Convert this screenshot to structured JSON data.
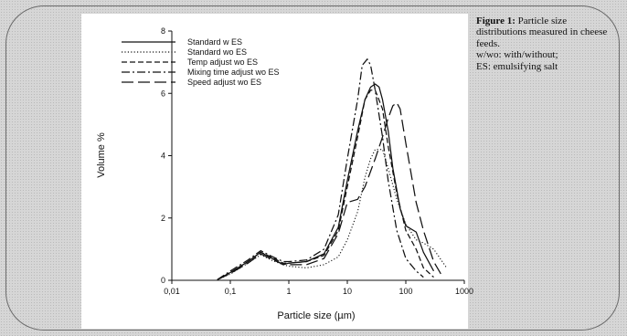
{
  "caption": {
    "figure_label": "Figure 1:",
    "title_text": "Particle size distributions measured in cheese feeds.",
    "note_line1": "w/wo: with/without;",
    "note_line2": "ES: emulsifying salt"
  },
  "chart_data": {
    "type": "line",
    "xlabel": "Particle size (µm)",
    "ylabel": "Volume %",
    "xscale": "log",
    "xlim": [
      0.01,
      1000
    ],
    "ylim": [
      0,
      8
    ],
    "xticks": [
      "0,01",
      "0,1",
      "1",
      "10",
      "100",
      "1000"
    ],
    "yticks": [
      "0",
      "2",
      "4",
      "6",
      "8"
    ],
    "legend_position": "top-left",
    "grid": false,
    "series": [
      {
        "name": "Standard w ES",
        "style": "solid",
        "points": [
          [
            0.06,
            0.02
          ],
          [
            0.1,
            0.25
          ],
          [
            0.2,
            0.6
          ],
          [
            0.33,
            0.9
          ],
          [
            0.5,
            0.72
          ],
          [
            0.8,
            0.5
          ],
          [
            1,
            0.55
          ],
          [
            2,
            0.6
          ],
          [
            4,
            0.85
          ],
          [
            7,
            1.7
          ],
          [
            10,
            3.2
          ],
          [
            15,
            4.8
          ],
          [
            20,
            5.8
          ],
          [
            25,
            6.2
          ],
          [
            30,
            6.3
          ],
          [
            35,
            6.2
          ],
          [
            40,
            5.8
          ],
          [
            50,
            4.8
          ],
          [
            60,
            3.6
          ],
          [
            80,
            2.3
          ],
          [
            100,
            1.75
          ],
          [
            150,
            1.55
          ],
          [
            200,
            0.9
          ],
          [
            300,
            0.3
          ]
        ]
      },
      {
        "name": "Standard wo ES",
        "style": "dotted",
        "points": [
          [
            0.06,
            0.02
          ],
          [
            0.1,
            0.2
          ],
          [
            0.2,
            0.55
          ],
          [
            0.33,
            0.82
          ],
          [
            0.5,
            0.65
          ],
          [
            0.8,
            0.5
          ],
          [
            1,
            0.45
          ],
          [
            2,
            0.4
          ],
          [
            4,
            0.5
          ],
          [
            7,
            0.75
          ],
          [
            10,
            1.3
          ],
          [
            15,
            2.2
          ],
          [
            20,
            3.3
          ],
          [
            25,
            3.9
          ],
          [
            30,
            4.2
          ],
          [
            40,
            4.2
          ],
          [
            50,
            3.6
          ],
          [
            70,
            2.6
          ],
          [
            100,
            1.8
          ],
          [
            150,
            1.3
          ],
          [
            200,
            1.2
          ],
          [
            300,
            1.0
          ],
          [
            500,
            0.4
          ]
        ]
      },
      {
        "name": "Temp adjust wo ES",
        "style": "dashed",
        "points": [
          [
            0.06,
            0.02
          ],
          [
            0.1,
            0.25
          ],
          [
            0.2,
            0.6
          ],
          [
            0.33,
            0.9
          ],
          [
            0.5,
            0.75
          ],
          [
            0.8,
            0.55
          ],
          [
            1,
            0.55
          ],
          [
            2,
            0.6
          ],
          [
            4,
            0.8
          ],
          [
            7,
            1.6
          ],
          [
            10,
            3.0
          ],
          [
            15,
            4.6
          ],
          [
            20,
            5.8
          ],
          [
            25,
            6.1
          ],
          [
            30,
            6.1
          ],
          [
            40,
            5.5
          ],
          [
            50,
            4.3
          ],
          [
            70,
            2.8
          ],
          [
            100,
            1.6
          ],
          [
            150,
            1.0
          ],
          [
            200,
            0.4
          ],
          [
            300,
            0.1
          ]
        ]
      },
      {
        "name": "Mixing time adjust wo ES",
        "style": "dashdot",
        "points": [
          [
            0.06,
            0.02
          ],
          [
            0.1,
            0.3
          ],
          [
            0.2,
            0.65
          ],
          [
            0.33,
            0.95
          ],
          [
            0.5,
            0.78
          ],
          [
            0.8,
            0.6
          ],
          [
            1,
            0.6
          ],
          [
            2,
            0.65
          ],
          [
            4,
            1.0
          ],
          [
            7,
            2.1
          ],
          [
            10,
            3.9
          ],
          [
            15,
            5.8
          ],
          [
            18,
            6.9
          ],
          [
            22,
            7.1
          ],
          [
            25,
            6.9
          ],
          [
            30,
            6.1
          ],
          [
            40,
            4.6
          ],
          [
            50,
            3.2
          ],
          [
            70,
            1.6
          ],
          [
            100,
            0.7
          ],
          [
            150,
            0.3
          ],
          [
            200,
            0.1
          ]
        ]
      },
      {
        "name": "Speed adjust wo ES",
        "style": "longdash",
        "points": [
          [
            0.06,
            0.02
          ],
          [
            0.1,
            0.22
          ],
          [
            0.2,
            0.55
          ],
          [
            0.33,
            0.85
          ],
          [
            0.5,
            0.68
          ],
          [
            0.8,
            0.52
          ],
          [
            1,
            0.5
          ],
          [
            2,
            0.5
          ],
          [
            4,
            0.7
          ],
          [
            7,
            1.5
          ],
          [
            10,
            2.5
          ],
          [
            15,
            2.6
          ],
          [
            20,
            3.0
          ],
          [
            30,
            3.9
          ],
          [
            40,
            4.6
          ],
          [
            50,
            5.2
          ],
          [
            60,
            5.6
          ],
          [
            70,
            5.7
          ],
          [
            80,
            5.5
          ],
          [
            100,
            4.4
          ],
          [
            150,
            2.5
          ],
          [
            200,
            1.6
          ],
          [
            300,
            0.6
          ],
          [
            400,
            0.2
          ]
        ]
      }
    ]
  }
}
